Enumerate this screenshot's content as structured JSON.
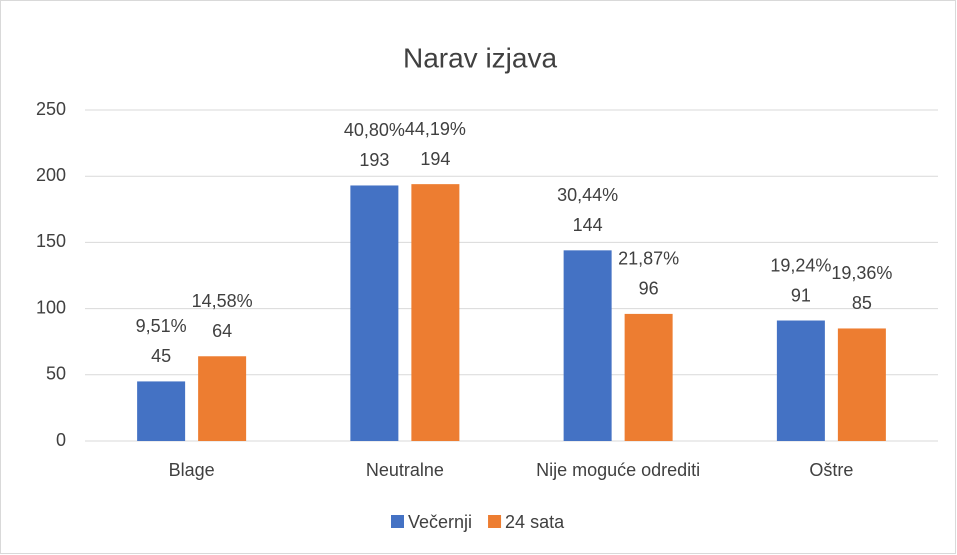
{
  "chart_data": {
    "type": "bar",
    "title": "Narav izjava",
    "categories": [
      "Blage",
      "Neutralne",
      "Nije moguće odrediti",
      "Oštre"
    ],
    "series": [
      {
        "name": "Večernji",
        "color": "#4472c4",
        "values": [
          45,
          193,
          144,
          91
        ],
        "percent_labels": [
          "9,51%",
          "40,80%",
          "30,44%",
          "19,24%"
        ]
      },
      {
        "name": "24 sata",
        "color": "#ed7d31",
        "values": [
          64,
          194,
          96,
          85
        ],
        "percent_labels": [
          "14,58%",
          "44,19%",
          "21,87%",
          "19,36%"
        ]
      }
    ],
    "ylim": [
      0,
      250
    ],
    "yticks": [
      0,
      50,
      100,
      150,
      200,
      250
    ],
    "grid": true,
    "legend": "bottom"
  }
}
